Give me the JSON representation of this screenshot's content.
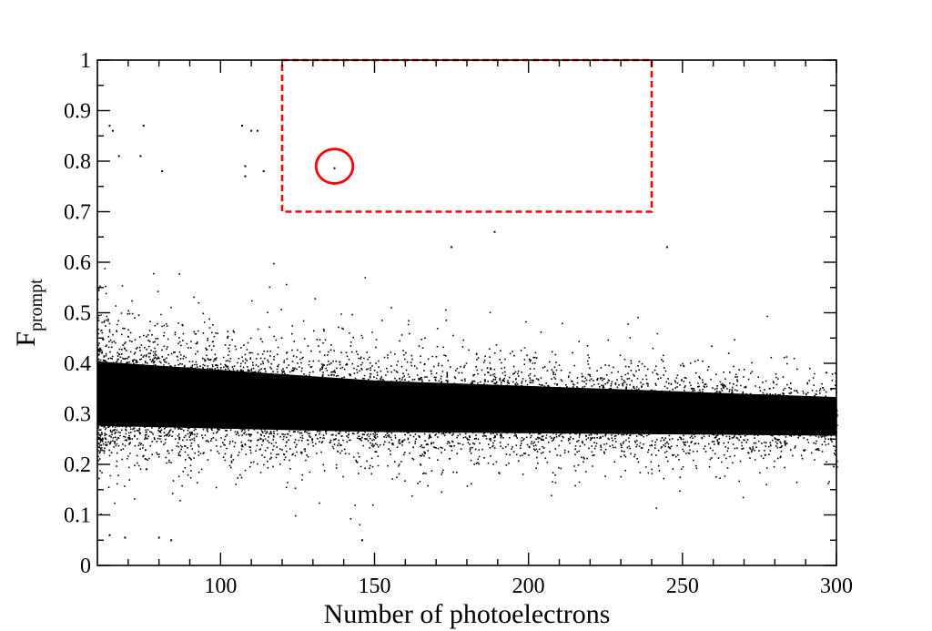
{
  "chart_data": {
    "type": "scatter",
    "title": "",
    "xlabel": "Number of photoelectrons",
    "ylabel_main": "F",
    "ylabel_sub": "prompt",
    "xlim": [
      60,
      300
    ],
    "ylim": [
      0,
      1
    ],
    "x_tick_labels": [
      "100",
      "150",
      "200",
      "250",
      "300"
    ],
    "x_tick_values": [
      100,
      150,
      200,
      250,
      300
    ],
    "y_tick_labels": [
      "0",
      "0.1",
      "0.2",
      "0.3",
      "0.4",
      "0.5",
      "0.6",
      "0.7",
      "0.8",
      "0.9",
      "1"
    ],
    "y_tick_values": [
      0,
      0.1,
      0.2,
      0.3,
      0.4,
      0.5,
      0.6,
      0.7,
      0.8,
      0.9,
      1.0
    ],
    "grid": false,
    "legend": "none",
    "marker_color": "#000000",
    "distribution": {
      "description_points": "dense band of events",
      "band_center": [
        {
          "x": 60,
          "y": 0.34
        },
        {
          "x": 150,
          "y": 0.315
        },
        {
          "x": 300,
          "y": 0.295
        }
      ],
      "band_halfwidth": [
        {
          "x": 60,
          "y": 0.075
        },
        {
          "x": 150,
          "y": 0.06
        },
        {
          "x": 300,
          "y": 0.045
        }
      ]
    },
    "outliers": [
      {
        "x": 64,
        "y": 0.87
      },
      {
        "x": 65,
        "y": 0.86
      },
      {
        "x": 67,
        "y": 0.81
      },
      {
        "x": 75,
        "y": 0.87
      },
      {
        "x": 74,
        "y": 0.81
      },
      {
        "x": 81,
        "y": 0.78
      },
      {
        "x": 107,
        "y": 0.87
      },
      {
        "x": 110,
        "y": 0.86
      },
      {
        "x": 108,
        "y": 0.79
      },
      {
        "x": 108,
        "y": 0.77
      },
      {
        "x": 112,
        "y": 0.86
      },
      {
        "x": 114,
        "y": 0.78
      },
      {
        "x": 189,
        "y": 0.66
      },
      {
        "x": 245,
        "y": 0.63
      },
      {
        "x": 175,
        "y": 0.63
      },
      {
        "x": 84,
        "y": 0.05
      },
      {
        "x": 80,
        "y": 0.055
      },
      {
        "x": 146,
        "y": 0.05
      },
      {
        "x": 64,
        "y": 0.06
      },
      {
        "x": 69,
        "y": 0.055
      }
    ],
    "signal_event": {
      "x": 137,
      "y": 0.786
    },
    "signal_circle": {
      "x": 137,
      "y": 0.79,
      "rx": 6,
      "ry": 0.034,
      "color": "#ff0000"
    },
    "signal_region": {
      "x": [
        120,
        240
      ],
      "y": [
        0.7,
        1.0
      ],
      "color": "#ff0000",
      "style": "dashed"
    }
  }
}
